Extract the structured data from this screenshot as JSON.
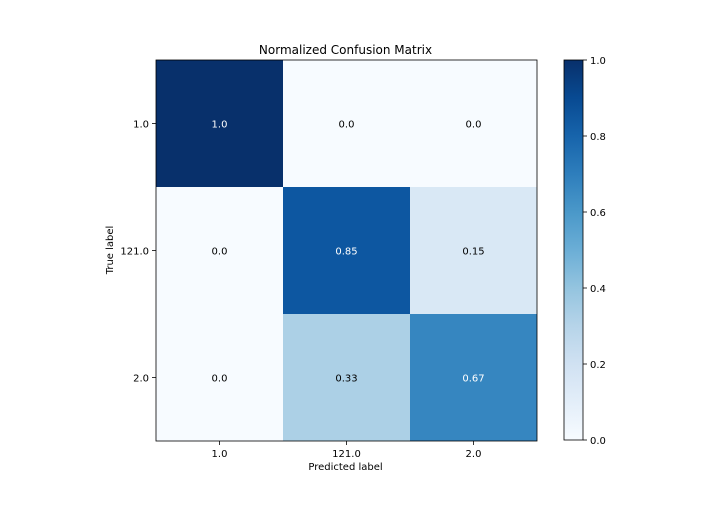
{
  "chart_data": {
    "type": "heatmap",
    "title": "Normalized Confusion Matrix",
    "xlabel": "Predicted label",
    "ylabel": "True label",
    "x_categories": [
      "1.0",
      "121.0",
      "2.0"
    ],
    "y_categories": [
      "1.0",
      "121.0",
      "2.0"
    ],
    "values": [
      [
        1.0,
        0.0,
        0.0
      ],
      [
        0.0,
        0.85,
        0.15
      ],
      [
        0.0,
        0.33,
        0.67
      ]
    ],
    "cell_labels": [
      [
        "1.0",
        "0.0",
        "0.0"
      ],
      [
        "0.0",
        "0.85",
        "0.15"
      ],
      [
        "0.0",
        "0.33",
        "0.67"
      ]
    ],
    "colormap": "Blues",
    "colorbar": {
      "range": [
        0.0,
        1.0
      ],
      "ticks": [
        0.0,
        0.2,
        0.4,
        0.6,
        0.8,
        1.0
      ],
      "tick_labels": [
        "0.0",
        "0.2",
        "0.4",
        "0.6",
        "0.8",
        "1.0"
      ]
    },
    "grid": false
  }
}
